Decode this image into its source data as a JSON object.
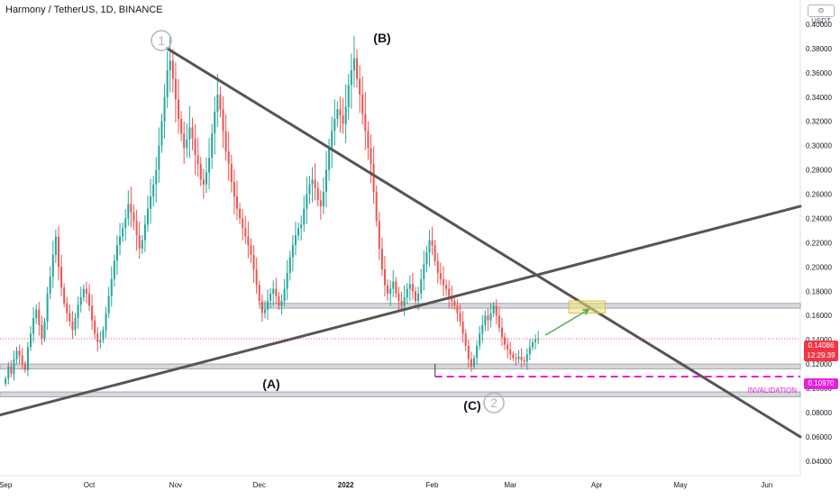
{
  "header": {
    "symbol_title": "Harmony / TetherUS, 1D, BINANCE",
    "currency_button": "⊙ USDT"
  },
  "last_price": {
    "value": "0.14086",
    "countdown": "12:29:39",
    "color": "#f23645"
  },
  "invalidation": {
    "price_label": "0.10970",
    "text": "INVALIDATION",
    "color": "#e91ee1"
  },
  "colors": {
    "up": "#26a69a",
    "down": "#ef5350",
    "trendline": "#555555",
    "zone": "#9e9e9e",
    "target_box": "#f5e27a",
    "arrow": "#4caf50",
    "axis_text": "#131722"
  },
  "annotations": {
    "wave_1": "1",
    "wave_2": "2",
    "label_A": "(A)",
    "label_B": "(B)",
    "label_C": "(C)"
  },
  "chart_data": {
    "type": "candlestick",
    "title": "Harmony / TetherUS, 1D, BINANCE",
    "y_axis": {
      "ticks": [
        "0.40000",
        "0.38000",
        "0.36000",
        "0.34000",
        "0.32000",
        "0.30000",
        "0.28000",
        "0.26000",
        "0.24000",
        "0.22000",
        "0.20000",
        "0.18000",
        "0.16000",
        "0.14000",
        "0.12000",
        "0.10000",
        "0.08000",
        "0.06000",
        "0.04000"
      ],
      "tick_values": [
        0.4,
        0.38,
        0.36,
        0.34,
        0.32,
        0.3,
        0.28,
        0.26,
        0.24,
        0.22,
        0.2,
        0.18,
        0.16,
        0.14,
        0.12,
        0.1,
        0.08,
        0.06,
        0.04
      ],
      "range": [
        0.028,
        0.42
      ]
    },
    "x_axis": {
      "ticks": [
        "Sep",
        "Oct",
        "Nov",
        "Dec",
        "2022",
        "Feb",
        "Mar",
        "Apr",
        "May",
        "Jun"
      ],
      "tick_day_index": [
        0,
        30,
        61,
        91,
        122,
        153,
        181,
        212,
        242,
        273
      ],
      "range_days": [
        -2,
        285
      ]
    },
    "candles_close": [
      0.108,
      0.118,
      0.112,
      0.124,
      0.131,
      0.127,
      0.12,
      0.115,
      0.134,
      0.145,
      0.158,
      0.165,
      0.152,
      0.141,
      0.155,
      0.178,
      0.192,
      0.21,
      0.225,
      0.2,
      0.183,
      0.17,
      0.162,
      0.155,
      0.148,
      0.158,
      0.169,
      0.175,
      0.182,
      0.178,
      0.168,
      0.156,
      0.145,
      0.138,
      0.14,
      0.148,
      0.162,
      0.176,
      0.19,
      0.205,
      0.218,
      0.225,
      0.232,
      0.24,
      0.252,
      0.245,
      0.238,
      0.226,
      0.215,
      0.222,
      0.235,
      0.248,
      0.258,
      0.268,
      0.28,
      0.3,
      0.32,
      0.34,
      0.362,
      0.37,
      0.355,
      0.338,
      0.322,
      0.31,
      0.298,
      0.305,
      0.315,
      0.306,
      0.292,
      0.285,
      0.272,
      0.268,
      0.278,
      0.29,
      0.31,
      0.328,
      0.342,
      0.33,
      0.312,
      0.295,
      0.285,
      0.27,
      0.258,
      0.248,
      0.24,
      0.232,
      0.225,
      0.218,
      0.21,
      0.198,
      0.185,
      0.172,
      0.162,
      0.165,
      0.172,
      0.178,
      0.182,
      0.176,
      0.168,
      0.172,
      0.182,
      0.195,
      0.208,
      0.218,
      0.226,
      0.232,
      0.235,
      0.248,
      0.26,
      0.268,
      0.272,
      0.265,
      0.255,
      0.25,
      0.262,
      0.28,
      0.298,
      0.312,
      0.322,
      0.33,
      0.325,
      0.318,
      0.332,
      0.35,
      0.362,
      0.372,
      0.355,
      0.342,
      0.326,
      0.312,
      0.298,
      0.285,
      0.262,
      0.238,
      0.215,
      0.198,
      0.185,
      0.178,
      0.182,
      0.188,
      0.178,
      0.172,
      0.168,
      0.175,
      0.182,
      0.186,
      0.18,
      0.172,
      0.178,
      0.19,
      0.202,
      0.212,
      0.222,
      0.218,
      0.205,
      0.195,
      0.19,
      0.185,
      0.182,
      0.176,
      0.172,
      0.168,
      0.162,
      0.155,
      0.145,
      0.135,
      0.124,
      0.118,
      0.125,
      0.135,
      0.145,
      0.152,
      0.16,
      0.156,
      0.162,
      0.168,
      0.16,
      0.15,
      0.142,
      0.136,
      0.132,
      0.128,
      0.125,
      0.124,
      0.126,
      0.123,
      0.122,
      0.128,
      0.134,
      0.138,
      0.14,
      0.141
    ],
    "trendlines": [
      {
        "from": [
          58,
          0.38
        ],
        "to": [
          285,
          0.06
        ]
      },
      {
        "from": [
          -2,
          0.078
        ],
        "to": [
          285,
          0.25
        ]
      }
    ],
    "zones": [
      {
        "low": 0.166,
        "high": 0.17,
        "from_day": 91
      },
      {
        "low": 0.116,
        "high": 0.12,
        "from_day": -2
      },
      {
        "low": 0.093,
        "high": 0.097,
        "from_day": -2
      }
    ],
    "invalidation_level": 0.1097,
    "last_price_level": 0.14086,
    "target_box": {
      "from_day": 202,
      "to_day": 215,
      "low": 0.162,
      "high": 0.172
    },
    "grid": false,
    "legend": "none"
  }
}
